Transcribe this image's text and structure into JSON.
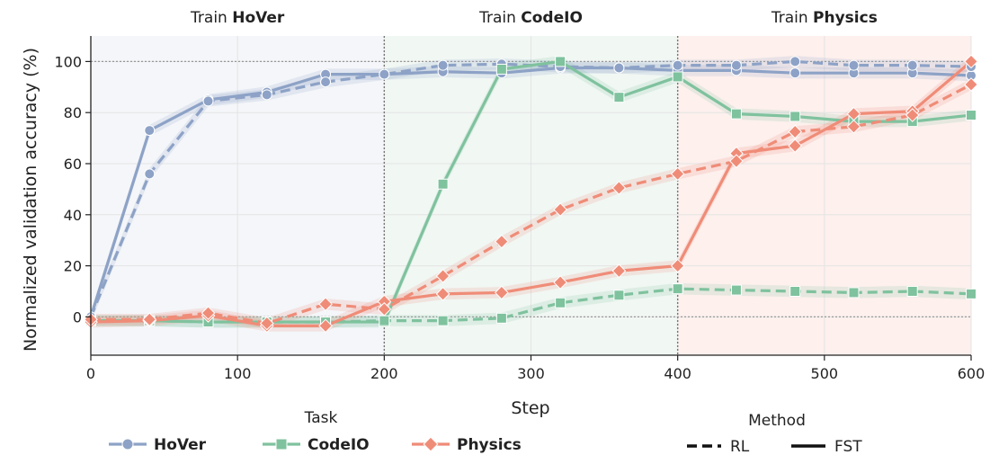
{
  "chart_data": {
    "type": "line",
    "xlabel": "Step",
    "ylabel": "Normalized validation accuracy (%)",
    "xlim": [
      0,
      600
    ],
    "ylim": [
      -15,
      110
    ],
    "xticks": [
      0,
      100,
      200,
      300,
      400,
      500,
      600
    ],
    "yticks": [
      0,
      20,
      40,
      60,
      80,
      100
    ],
    "grid": true,
    "phases": [
      {
        "prefix": "Train ",
        "task": "HoVer",
        "range": [
          0,
          200
        ],
        "color": "#8da2c6"
      },
      {
        "prefix": "Train ",
        "task": "CodeIO",
        "range": [
          200,
          400
        ],
        "color": "#7fc29e"
      },
      {
        "prefix": "Train ",
        "task": "Physics",
        "range": [
          400,
          600
        ],
        "color": "#ef8c78"
      }
    ],
    "legend": {
      "task_title": "Task",
      "method_title": "Method",
      "tasks": [
        {
          "name": "HoVer",
          "color": "#8da2c6",
          "marker": "circle"
        },
        {
          "name": "CodeIO",
          "color": "#7fc29e",
          "marker": "square"
        },
        {
          "name": "Physics",
          "color": "#ef8c78",
          "marker": "diamond"
        }
      ],
      "methods": [
        {
          "name": "RL",
          "dash": true
        },
        {
          "name": "FST",
          "dash": false
        }
      ],
      "placement": "bottom"
    },
    "x": [
      0,
      40,
      80,
      120,
      160,
      200,
      240,
      280,
      320,
      360,
      400,
      440,
      480,
      520,
      560,
      600
    ],
    "series": [
      {
        "name": "HoVer",
        "method": "FST",
        "color": "#8da2c6",
        "marker": "circle",
        "values": [
          0,
          73,
          85,
          88,
          95,
          95,
          96,
          95.5,
          97.5,
          97.5,
          96.5,
          96.5,
          95.5,
          95.5,
          95.5,
          94.5
        ]
      },
      {
        "name": "HoVer",
        "method": "RL",
        "color": "#8da2c6",
        "marker": "circle",
        "values": [
          0,
          56,
          84.5,
          87,
          92,
          95,
          98.5,
          99,
          98,
          97.5,
          98.5,
          98.5,
          100,
          98.5,
          98.5,
          98
        ]
      },
      {
        "name": "CodeIO",
        "method": "FST",
        "color": "#7fc29e",
        "marker": "square",
        "values": [
          -1.5,
          -1.5,
          -2,
          -2,
          -2,
          -2,
          52,
          97,
          100,
          86,
          94,
          79.5,
          78.5,
          76.5,
          76.5,
          79
        ]
      },
      {
        "name": "CodeIO",
        "method": "RL",
        "color": "#7fc29e",
        "marker": "square",
        "values": [
          -1.5,
          -1.5,
          -2,
          -2,
          -2,
          -1.5,
          -1.5,
          -0.5,
          5.5,
          8.5,
          11,
          10.5,
          10,
          9.5,
          10,
          9
        ]
      },
      {
        "name": "Physics",
        "method": "FST",
        "color": "#ef8c78",
        "marker": "diamond",
        "values": [
          -2,
          -1.5,
          0.5,
          -3.5,
          -3.5,
          6,
          9,
          9.5,
          13.5,
          18,
          20,
          64,
          67,
          79.5,
          80.5,
          100
        ]
      },
      {
        "name": "Physics",
        "method": "RL",
        "color": "#ef8c78",
        "marker": "diamond",
        "values": [
          -1,
          -1,
          1.5,
          -2.5,
          5,
          3,
          16,
          29.5,
          42,
          50.5,
          56,
          61,
          72.5,
          74.5,
          79,
          91
        ]
      }
    ]
  }
}
